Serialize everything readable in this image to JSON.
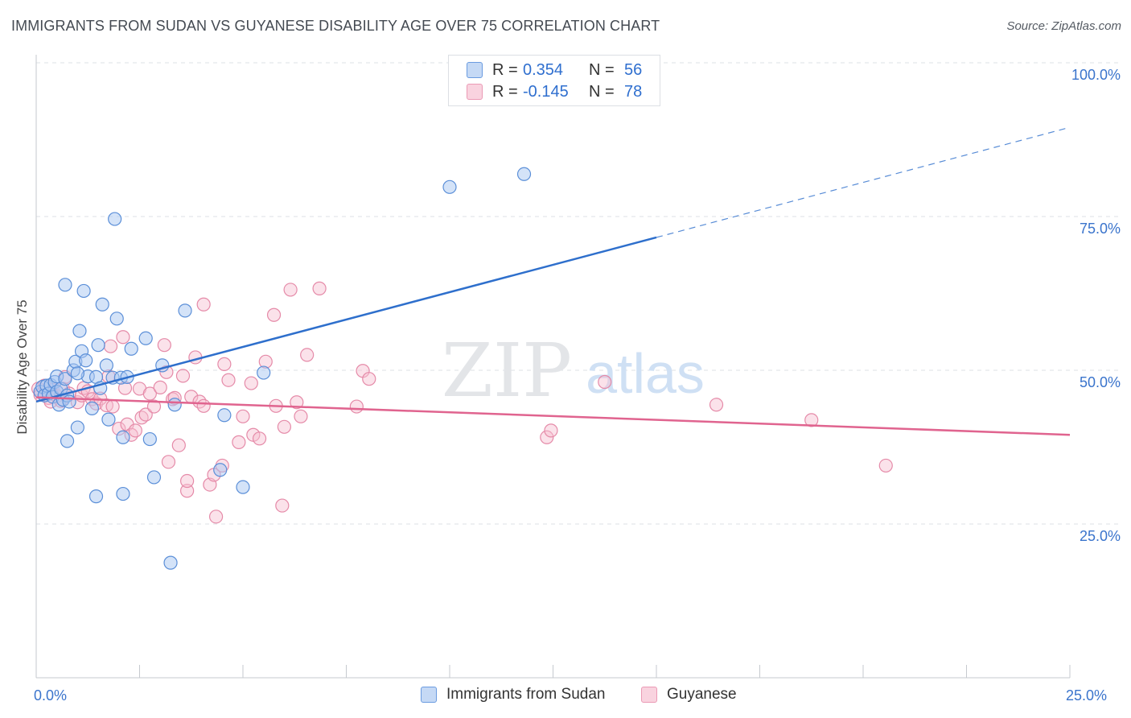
{
  "title": "IMMIGRANTS FROM SUDAN VS GUYANESE DISABILITY AGE OVER 75 CORRELATION CHART",
  "source": "Source: ZipAtlas.com",
  "watermark": {
    "zip": "ZIP",
    "atlas": "atlas"
  },
  "legend_top": [
    {
      "r_label": "R =",
      "r_value": "0.354",
      "n_label": "N =",
      "n_value": "56"
    },
    {
      "r_label": "R =",
      "r_value": "-0.145",
      "n_label": "N =",
      "n_value": "78"
    }
  ],
  "colors": {
    "sudan_fill": "#a9c8f2",
    "sudan_stroke": "#5b8fd8",
    "sudan_line": "#2e6fcc",
    "guyanese_fill": "#f6bfd0",
    "guyanese_stroke": "#e58aa8",
    "guyanese_line": "#e0648f",
    "tick_text": "#3a74cc",
    "grid": "#dde1e6"
  },
  "chart_data": {
    "type": "scatter",
    "title": "IMMIGRANTS FROM SUDAN VS GUYANESE DISABILITY AGE OVER 75 CORRELATION CHART",
    "xlabel": "",
    "ylabel": "Disability Age Over 75",
    "xlim": [
      0,
      25
    ],
    "ylim": [
      0,
      100
    ],
    "x_tick_labels": [
      "0.0%",
      "25.0%"
    ],
    "y_tick_labels": [
      "25.0%",
      "50.0%",
      "75.0%",
      "100.0%"
    ],
    "y_ticks": [
      25,
      50,
      75,
      100
    ],
    "grid": true,
    "legend_position": "bottom",
    "series": [
      {
        "name": "Immigrants from Sudan",
        "r": 0.354,
        "n": 56,
        "trend": {
          "x0": 0.0,
          "y0": 44.9,
          "x1": 15.0,
          "y1": 71.6,
          "dashed_to_x": 25.0,
          "dashed_to_y": 89.5
        },
        "points": [
          [
            0.1,
            46.5
          ],
          [
            0.15,
            47.3
          ],
          [
            0.2,
            45.9
          ],
          [
            0.25,
            47.5
          ],
          [
            0.3,
            46.2
          ],
          [
            0.35,
            47.6
          ],
          [
            0.4,
            45.7
          ],
          [
            0.45,
            48.1
          ],
          [
            0.5,
            49.0
          ],
          [
            0.5,
            46.5
          ],
          [
            0.55,
            44.4
          ],
          [
            0.6,
            47.0
          ],
          [
            0.65,
            45.2
          ],
          [
            0.7,
            48.6
          ],
          [
            0.75,
            45.9
          ],
          [
            0.8,
            44.9
          ],
          [
            0.9,
            50.0
          ],
          [
            0.95,
            51.4
          ],
          [
            1.0,
            40.7
          ],
          [
            1.05,
            56.4
          ],
          [
            1.1,
            53.1
          ],
          [
            1.15,
            62.9
          ],
          [
            1.2,
            51.6
          ],
          [
            1.25,
            49.0
          ],
          [
            1.35,
            43.8
          ],
          [
            1.45,
            48.9
          ],
          [
            1.5,
            54.1
          ],
          [
            1.55,
            47.1
          ],
          [
            1.6,
            60.7
          ],
          [
            1.7,
            50.8
          ],
          [
            1.75,
            42.0
          ],
          [
            1.85,
            48.8
          ],
          [
            1.9,
            74.6
          ],
          [
            1.95,
            58.4
          ],
          [
            2.05,
            48.8
          ],
          [
            2.1,
            39.1
          ],
          [
            2.2,
            48.9
          ],
          [
            2.3,
            53.5
          ],
          [
            2.65,
            55.2
          ],
          [
            2.75,
            38.8
          ],
          [
            2.85,
            32.6
          ],
          [
            3.05,
            50.8
          ],
          [
            3.25,
            18.7
          ],
          [
            3.35,
            44.4
          ],
          [
            4.45,
            33.8
          ],
          [
            5.0,
            31.0
          ],
          [
            5.5,
            49.6
          ],
          [
            10.0,
            79.8
          ],
          [
            11.8,
            81.9
          ],
          [
            0.7,
            63.9
          ],
          [
            0.75,
            38.5
          ],
          [
            1.45,
            29.5
          ],
          [
            2.1,
            29.9
          ],
          [
            1.0,
            49.5
          ],
          [
            3.6,
            59.7
          ],
          [
            4.55,
            42.7
          ]
        ]
      },
      {
        "name": "Guyanese",
        "r": -0.145,
        "n": 78,
        "trend": {
          "x0": 0.0,
          "y0": 45.6,
          "x1": 25.0,
          "y1": 39.5
        },
        "points": [
          [
            0.05,
            47.0
          ],
          [
            0.1,
            46.0
          ],
          [
            0.2,
            47.5
          ],
          [
            0.3,
            45.5
          ],
          [
            0.35,
            44.9
          ],
          [
            0.4,
            46.8
          ],
          [
            0.5,
            45.8
          ],
          [
            0.6,
            45.0
          ],
          [
            0.65,
            47.0
          ],
          [
            0.7,
            48.9
          ],
          [
            0.8,
            46.2
          ],
          [
            1.0,
            44.8
          ],
          [
            1.1,
            45.9
          ],
          [
            1.15,
            47.1
          ],
          [
            1.25,
            46.6
          ],
          [
            1.35,
            45.3
          ],
          [
            1.45,
            44.6
          ],
          [
            1.55,
            45.4
          ],
          [
            1.7,
            44.3
          ],
          [
            1.75,
            49.0
          ],
          [
            1.8,
            53.9
          ],
          [
            1.85,
            44.1
          ],
          [
            2.0,
            40.5
          ],
          [
            2.1,
            55.4
          ],
          [
            2.15,
            47.1
          ],
          [
            2.2,
            41.2
          ],
          [
            2.3,
            39.5
          ],
          [
            2.4,
            40.2
          ],
          [
            2.5,
            47.0
          ],
          [
            2.55,
            42.3
          ],
          [
            2.65,
            42.8
          ],
          [
            2.75,
            46.2
          ],
          [
            2.85,
            44.1
          ],
          [
            3.0,
            47.2
          ],
          [
            3.1,
            54.1
          ],
          [
            3.15,
            49.7
          ],
          [
            3.2,
            35.1
          ],
          [
            3.3,
            45.3
          ],
          [
            3.35,
            45.5
          ],
          [
            3.45,
            37.8
          ],
          [
            3.55,
            49.1
          ],
          [
            3.65,
            30.4
          ],
          [
            3.65,
            32.0
          ],
          [
            3.75,
            45.7
          ],
          [
            3.85,
            52.1
          ],
          [
            3.95,
            44.9
          ],
          [
            4.05,
            44.2
          ],
          [
            4.05,
            60.7
          ],
          [
            4.2,
            31.4
          ],
          [
            4.3,
            33.0
          ],
          [
            4.35,
            26.2
          ],
          [
            4.5,
            34.5
          ],
          [
            4.55,
            51.0
          ],
          [
            4.65,
            48.4
          ],
          [
            4.9,
            38.3
          ],
          [
            5.0,
            42.5
          ],
          [
            5.2,
            47.9
          ],
          [
            5.25,
            39.5
          ],
          [
            5.4,
            38.9
          ],
          [
            5.55,
            51.4
          ],
          [
            5.75,
            59.0
          ],
          [
            5.8,
            44.2
          ],
          [
            5.95,
            28.0
          ],
          [
            6.0,
            40.8
          ],
          [
            6.15,
            63.1
          ],
          [
            6.3,
            44.8
          ],
          [
            6.4,
            42.5
          ],
          [
            6.55,
            52.5
          ],
          [
            6.85,
            63.3
          ],
          [
            7.75,
            44.1
          ],
          [
            7.9,
            49.9
          ],
          [
            8.05,
            48.6
          ],
          [
            12.35,
            39.1
          ],
          [
            12.45,
            40.2
          ],
          [
            13.75,
            48.1
          ],
          [
            16.45,
            44.4
          ],
          [
            18.75,
            41.9
          ],
          [
            20.55,
            34.5
          ]
        ]
      }
    ]
  }
}
